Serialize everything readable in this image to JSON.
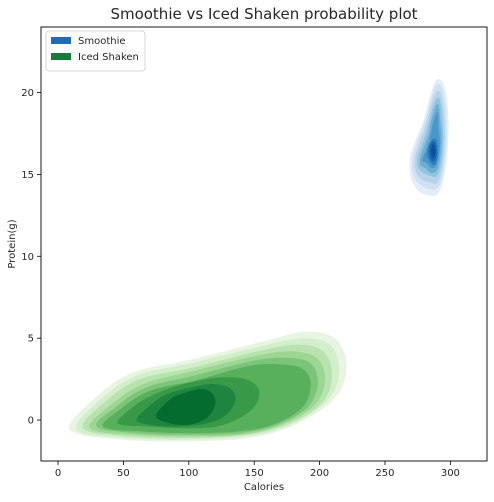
{
  "chart_data": {
    "type": "kde",
    "title": "Smoothie vs Iced Shaken probability plot",
    "xlabel": "Calories",
    "ylabel": "Protein(g)",
    "xlim": [
      -13,
      328
    ],
    "ylim": [
      -2.5,
      24
    ],
    "xticks": [
      0,
      50,
      100,
      150,
      200,
      250,
      300
    ],
    "yticks": [
      0,
      5,
      10,
      15,
      20
    ],
    "grid": false,
    "legend": {
      "placement": "top-left",
      "entries": [
        "Smoothie",
        "Iced Shaken"
      ]
    },
    "series": [
      {
        "name": "Smoothie",
        "color": "#1f6eb5",
        "palette": [
          "#e3eef9",
          "#cfe1f2",
          "#b5d4e9",
          "#93c4df",
          "#6aaed6",
          "#4a98c9",
          "#2e7ebc",
          "#1764ab",
          "#08519c"
        ],
        "levels": [
          [
            [
              285.0,
              13.7
            ],
            [
              275.3,
              14.0
            ],
            [
              269.4,
              14.9
            ],
            [
              269.1,
              16.1
            ],
            [
              273.4,
              17.1
            ],
            [
              279.4,
              18.3
            ],
            [
              284.5,
              19.8
            ],
            [
              288.7,
              20.7
            ],
            [
              293.7,
              20.7
            ],
            [
              297.5,
              19.6
            ],
            [
              298.5,
              17.4
            ],
            [
              296.0,
              15.2
            ],
            [
              291.2,
              13.9
            ]
          ],
          [
            [
              285.0,
              14.1
            ],
            [
              276.5,
              14.4
            ],
            [
              271.2,
              15.1
            ],
            [
              271.2,
              16.1
            ],
            [
              275.0,
              17.1
            ],
            [
              280.4,
              18.2
            ],
            [
              284.8,
              19.5
            ],
            [
              288.8,
              20.4
            ],
            [
              293.0,
              20.4
            ],
            [
              296.2,
              19.3
            ],
            [
              297.2,
              17.3
            ],
            [
              295.0,
              15.3
            ],
            [
              290.7,
              14.2
            ]
          ],
          [
            [
              285.0,
              14.5
            ],
            [
              277.8,
              14.7
            ],
            [
              273.1,
              15.3
            ],
            [
              273.2,
              16.1
            ],
            [
              276.6,
              17.0
            ],
            [
              281.3,
              18.0
            ],
            [
              285.1,
              19.2
            ],
            [
              288.9,
              20.0
            ],
            [
              292.4,
              20.0
            ],
            [
              294.9,
              19.0
            ],
            [
              295.9,
              17.2
            ],
            [
              294.0,
              15.5
            ],
            [
              290.3,
              14.5
            ]
          ],
          [
            [
              285.0,
              14.9
            ],
            [
              279.1,
              15.1
            ],
            [
              275.0,
              15.5
            ],
            [
              275.2,
              16.1
            ],
            [
              278.3,
              16.8
            ],
            [
              282.3,
              17.8
            ],
            [
              285.4,
              18.8
            ],
            [
              289.0,
              19.6
            ],
            [
              291.8,
              19.6
            ],
            [
              293.6,
              18.7
            ],
            [
              294.6,
              17.1
            ],
            [
              293.0,
              15.7
            ],
            [
              289.8,
              14.9
            ]
          ],
          [
            [
              285.0,
              15.1
            ],
            [
              280.4,
              15.4
            ],
            [
              276.9,
              15.6
            ],
            [
              277.3,
              16.1
            ],
            [
              279.9,
              16.7
            ],
            [
              283.3,
              17.5
            ],
            [
              285.7,
              18.4
            ],
            [
              289.0,
              19.2
            ],
            [
              291.1,
              19.2
            ],
            [
              292.3,
              18.3
            ],
            [
              293.3,
              17.0
            ],
            [
              292.0,
              15.9
            ],
            [
              289.3,
              15.2
            ]
          ],
          [
            [
              285.1,
              15.4
            ],
            [
              281.7,
              15.7
            ],
            [
              278.9,
              15.8
            ],
            [
              279.3,
              16.1
            ],
            [
              281.6,
              16.5
            ],
            [
              284.2,
              17.2
            ],
            [
              286.0,
              17.9
            ],
            [
              289.1,
              18.7
            ],
            [
              290.5,
              18.7
            ],
            [
              291.0,
              17.9
            ],
            [
              292.0,
              16.8
            ],
            [
              291.0,
              16.1
            ],
            [
              288.9,
              15.5
            ]
          ],
          [
            [
              286.0,
              15.6
            ],
            [
              283.5,
              15.9
            ],
            [
              282.2,
              16.2
            ],
            [
              283.0,
              16.7
            ],
            [
              285.0,
              17.0
            ],
            [
              287.4,
              17.2
            ],
            [
              289.3,
              17.1
            ],
            [
              290.4,
              16.6
            ],
            [
              290.2,
              16.0
            ],
            [
              288.4,
              15.6
            ]
          ],
          [
            [
              286.5,
              15.8
            ],
            [
              284.5,
              16.0
            ],
            [
              283.8,
              16.4
            ],
            [
              284.6,
              16.8
            ],
            [
              286.2,
              17.0
            ],
            [
              288.0,
              17.0
            ],
            [
              289.2,
              16.7
            ],
            [
              289.4,
              16.2
            ],
            [
              288.4,
              15.9
            ]
          ],
          [
            [
              287.0,
              16.0
            ],
            [
              285.6,
              16.2
            ],
            [
              285.4,
              16.5
            ],
            [
              286.3,
              16.8
            ],
            [
              287.6,
              16.8
            ],
            [
              288.6,
              16.5
            ],
            [
              288.5,
              16.2
            ]
          ]
        ]
      },
      {
        "name": "Iced Shaken",
        "color": "#1a7a3c",
        "palette": [
          "#e8f5e3",
          "#d3eecb",
          "#b9e3ae",
          "#9dd594",
          "#7cc47a",
          "#58b05c",
          "#389a48",
          "#1f8440",
          "#036c2e"
        ],
        "levels": [
          [
            [
              9.1,
              -0.6
            ],
            [
              27.6,
              1.3
            ],
            [
              57.0,
              2.9
            ],
            [
              102.0,
              3.7
            ],
            [
              157.0,
              4.8
            ],
            [
              190.0,
              5.4
            ],
            [
              213.0,
              4.9
            ],
            [
              220.6,
              3.2
            ],
            [
              211.3,
              1.3
            ],
            [
              181.2,
              -0.3
            ],
            [
              145.7,
              -1.1
            ],
            [
              97.0,
              -1.3
            ],
            [
              49.0,
              -1.2
            ]
          ],
          [
            [
              14.2,
              -0.6
            ],
            [
              31.7,
              1.2
            ],
            [
              59.7,
              2.7
            ],
            [
              102.4,
              3.5
            ],
            [
              154.7,
              4.5
            ],
            [
              186.0,
              5.0
            ],
            [
              207.8,
              4.6
            ],
            [
              215.1,
              3.0
            ],
            [
              206.2,
              1.2
            ],
            [
              177.7,
              -0.3
            ],
            [
              143.9,
              -1.0
            ],
            [
              97.7,
              -1.2
            ],
            [
              52.1,
              -1.1
            ]
          ],
          [
            [
              19.3,
              -0.5
            ],
            [
              35.9,
              1.1
            ],
            [
              62.5,
              2.5
            ],
            [
              102.9,
              3.2
            ],
            [
              152.5,
              4.2
            ],
            [
              182.1,
              4.6
            ],
            [
              202.8,
              4.2
            ],
            [
              209.6,
              2.7
            ],
            [
              201.2,
              1.0
            ],
            [
              174.2,
              -0.3
            ],
            [
              142.1,
              -0.9
            ],
            [
              98.4,
              -1.1
            ],
            [
              55.1,
              -1.0
            ]
          ],
          [
            [
              24.4,
              -0.5
            ],
            [
              40.0,
              0.9
            ],
            [
              65.2,
              2.2
            ],
            [
              103.3,
              3.0
            ],
            [
              150.2,
              3.9
            ],
            [
              178.1,
              4.2
            ],
            [
              197.7,
              3.8
            ],
            [
              204.2,
              2.5
            ],
            [
              196.2,
              0.9
            ],
            [
              170.7,
              -0.3
            ],
            [
              140.4,
              -0.9
            ],
            [
              99.1,
              -1.0
            ],
            [
              58.2,
              -0.9
            ]
          ],
          [
            [
              29.6,
              -0.4
            ],
            [
              44.1,
              0.8
            ],
            [
              67.9,
              2.0
            ],
            [
              103.8,
              2.7
            ],
            [
              147.9,
              3.6
            ],
            [
              174.1,
              3.8
            ],
            [
              192.6,
              3.5
            ],
            [
              198.7,
              2.3
            ],
            [
              191.2,
              0.8
            ],
            [
              167.2,
              -0.3
            ],
            [
              138.6,
              -0.8
            ],
            [
              99.8,
              -0.9
            ],
            [
              61.3,
              -0.8
            ]
          ],
          [
            [
              34.7,
              -0.4
            ],
            [
              48.3,
              0.7
            ],
            [
              70.6,
              1.8
            ],
            [
              104.2,
              2.4
            ],
            [
              145.7,
              3.3
            ],
            [
              170.2,
              3.4
            ],
            [
              187.5,
              3.1
            ],
            [
              193.2,
              2.1
            ],
            [
              186.1,
              0.7
            ],
            [
              163.6,
              -0.3
            ],
            [
              136.8,
              -0.7
            ],
            [
              100.5,
              -0.8
            ],
            [
              64.4,
              -0.7
            ]
          ],
          [
            [
              45.9,
              -0.2
            ],
            [
              57.4,
              0.8
            ],
            [
              74.2,
              1.6
            ],
            [
              96.1,
              2.2
            ],
            [
              122.8,
              2.6
            ],
            [
              143.2,
              2.5
            ],
            [
              153.4,
              1.9
            ],
            [
              151.6,
              1.0
            ],
            [
              140.8,
              0.2
            ],
            [
              121.1,
              -0.4
            ],
            [
              96.8,
              -0.5
            ],
            [
              70.5,
              -0.4
            ]
          ],
          [
            [
              60.0,
              0.0
            ],
            [
              68.8,
              0.8
            ],
            [
              81.2,
              1.5
            ],
            [
              97.0,
              1.9
            ],
            [
              116.4,
              2.2
            ],
            [
              130.2,
              2.0
            ],
            [
              135.9,
              1.4
            ],
            [
              131.8,
              0.6
            ],
            [
              122.0,
              0.0
            ],
            [
              106.8,
              -0.3
            ],
            [
              88.6,
              -0.4
            ],
            [
              71.5,
              -0.3
            ]
          ],
          [
            [
              74.9,
              0.2
            ],
            [
              80.6,
              0.9
            ],
            [
              88.4,
              1.4
            ],
            [
              98.5,
              1.7
            ],
            [
              110.4,
              1.9
            ],
            [
              118.1,
              1.6
            ],
            [
              120.3,
              1.0
            ],
            [
              116.0,
              0.3
            ],
            [
              108.5,
              -0.1
            ],
            [
              97.7,
              -0.3
            ],
            [
              85.4,
              -0.2
            ]
          ]
        ]
      }
    ]
  }
}
